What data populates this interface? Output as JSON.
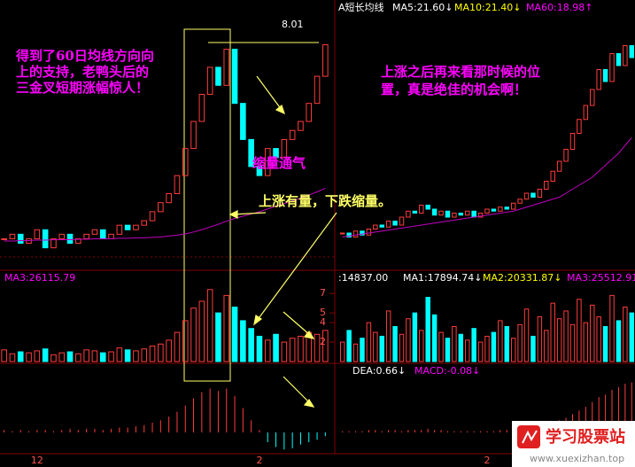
{
  "left": {
    "note_lines": [
      "得到了60日均线方向向",
      "上的支持，老鸭头后的",
      "三金叉短期涨幅惊人！"
    ],
    "note_shrink": "缩量通气",
    "note_volume": "上涨有量，下跌缩量。",
    "high_label": "8.01",
    "vol_label": "MA3:26115.79",
    "price_ylim": [
      3,
      8.4
    ],
    "closes": [
      3.6,
      3.7,
      3.5,
      3.6,
      3.8,
      3.4,
      3.6,
      3.7,
      3.5,
      3.6,
      3.7,
      3.8,
      3.6,
      3.7,
      3.9,
      3.8,
      3.9,
      4.0,
      4.2,
      4.4,
      4.6,
      5.0,
      5.6,
      6.2,
      6.8,
      7.4,
      7.0,
      7.8,
      6.6,
      5.8,
      5.2,
      5.0,
      5.6,
      5.4,
      5.8,
      6.0,
      6.2,
      6.6,
      7.2,
      7.9
    ],
    "ma60": [
      3.55,
      3.55,
      3.56,
      3.56,
      3.57,
      3.57,
      3.58,
      3.58,
      3.58,
      3.59,
      3.59,
      3.6,
      3.6,
      3.6,
      3.61,
      3.61,
      3.62,
      3.62,
      3.63,
      3.64,
      3.66,
      3.68,
      3.71,
      3.75,
      3.8,
      3.86,
      3.92,
      3.99,
      4.05,
      4.1,
      4.15,
      4.2,
      4.26,
      4.32,
      4.38,
      4.44,
      4.5,
      4.57,
      4.64,
      4.72
    ],
    "volume": [
      1.2,
      0.8,
      1.0,
      0.9,
      1.1,
      1.3,
      0.7,
      0.9,
      1.0,
      0.8,
      1.2,
      1.1,
      0.9,
      1.0,
      1.4,
      1.2,
      1.1,
      1.3,
      1.6,
      1.8,
      2.2,
      3.0,
      4.2,
      5.5,
      6.2,
      7.4,
      5.0,
      6.8,
      5.6,
      4.2,
      3.4,
      2.6,
      2.2,
      2.8,
      2.0,
      2.4,
      2.6,
      3.0,
      2.8,
      3.2
    ],
    "vol_ylim": [
      0,
      8.2
    ],
    "vol_ticks": [
      7,
      5,
      4,
      2
    ],
    "macd": [
      0.02,
      0.01,
      0.02,
      0.01,
      0.02,
      0.02,
      0.01,
      0.02,
      0.03,
      0.02,
      0.03,
      0.03,
      0.02,
      0.03,
      0.04,
      0.04,
      0.05,
      0.06,
      0.08,
      0.1,
      0.13,
      0.17,
      0.22,
      0.28,
      0.33,
      0.36,
      0.34,
      0.36,
      0.3,
      0.2,
      0.1,
      0.02,
      -0.08,
      -0.12,
      -0.14,
      -0.13,
      -0.1,
      -0.08,
      -0.06,
      -0.03
    ],
    "x_labels": [
      "12",
      "2"
    ]
  },
  "right": {
    "title": "A短长均线",
    "ma5": "MA5:21.60↓",
    "ma10": "MA10:21.40↓",
    "ma60": "MA60:18.98↑",
    "note_lines": [
      "上涨之后再来看那时候的位",
      "置，真是绝佳的机会啊！"
    ],
    "vol_labels": [
      ":14837.00",
      "MA1:17894.74↓",
      "MA2:20331.87↓",
      "MA3:25512.91"
    ],
    "macd_labels": [
      "DEA:0.66↓",
      "MACD:-0.08↓"
    ],
    "price_ylim": [
      13,
      25
    ],
    "closes": [
      14.2,
      14.0,
      14.3,
      14.1,
      14.4,
      14.6,
      14.5,
      14.8,
      14.6,
      15.0,
      15.3,
      15.2,
      15.6,
      15.4,
      15.1,
      15.3,
      15.0,
      15.2,
      15.1,
      15.3,
      15.0,
      15.2,
      15.4,
      15.3,
      15.5,
      15.4,
      15.7,
      15.9,
      16.2,
      16.0,
      16.4,
      16.8,
      17.3,
      17.8,
      18.4,
      19.2,
      19.9,
      20.6,
      21.4,
      22.4,
      21.8,
      23.2,
      22.6,
      23.6,
      23.0
    ],
    "ma60_line": [
      14.0,
      14.05,
      14.1,
      14.15,
      14.2,
      14.25,
      14.3,
      14.35,
      14.4,
      14.45,
      14.5,
      14.55,
      14.6,
      14.65,
      14.7,
      14.75,
      14.8,
      14.85,
      14.9,
      14.95,
      15.0,
      15.05,
      15.1,
      15.15,
      15.2,
      15.25,
      15.3,
      15.4,
      15.5,
      15.6,
      15.7,
      15.8,
      15.9,
      16.0,
      16.2,
      16.4,
      16.6,
      16.8,
      17.0,
      17.3,
      17.6,
      17.9,
      18.2,
      18.6,
      18.98
    ],
    "volume": [
      2.0,
      3.2,
      1.8,
      2.4,
      4.0,
      3.0,
      2.6,
      5.2,
      3.6,
      2.8,
      4.4,
      5.0,
      3.2,
      6.6,
      4.8,
      3.0,
      2.4,
      3.6,
      2.8,
      2.2,
      3.4,
      2.0,
      2.6,
      3.0,
      4.2,
      3.6,
      2.4,
      3.8,
      5.4,
      2.6,
      4.6,
      3.2,
      6.0,
      4.4,
      5.2,
      3.8,
      6.4,
      4.0,
      5.8,
      4.6,
      3.6,
      6.8,
      4.2,
      5.6,
      5.0
    ],
    "macd": [
      0.01,
      0.01,
      0.01,
      0.01,
      0.02,
      0.02,
      0.01,
      0.02,
      0.02,
      0.01,
      0.02,
      0.02,
      0.02,
      0.03,
      0.02,
      0.02,
      0.01,
      0.01,
      0.01,
      0.01,
      0.01,
      0.01,
      0.01,
      0.01,
      0.02,
      0.02,
      0.02,
      0.03,
      0.04,
      0.04,
      0.05,
      0.06,
      0.08,
      0.1,
      0.12,
      0.15,
      0.18,
      0.21,
      0.25,
      0.29,
      0.31,
      0.35,
      0.37,
      0.4,
      0.41
    ],
    "x_labels": [
      "2"
    ]
  },
  "watermark": {
    "name": "学习股票站",
    "url": "www.xuexizhan.top"
  }
}
